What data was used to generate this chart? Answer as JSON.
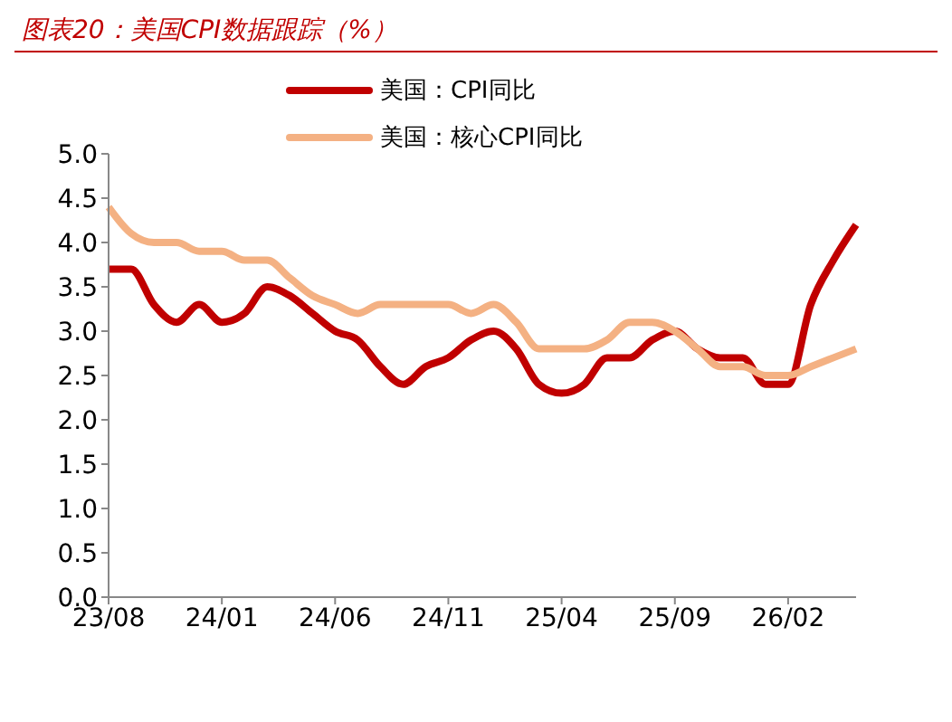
{
  "chart_data": {
    "type": "line",
    "title": "图表20：美国CPI数据跟踪（%）",
    "categories": [
      "23/08",
      null,
      null,
      null,
      null,
      "24/01",
      null,
      null,
      null,
      null,
      "24/06",
      null,
      null,
      null,
      null,
      "24/11",
      null,
      null,
      null,
      null,
      "25/04",
      null,
      null,
      null,
      null,
      "25/09",
      null,
      null,
      null,
      null,
      "26/02",
      null,
      null,
      null
    ],
    "series": [
      {
        "name": "美国：CPI同比",
        "color": "#c00000",
        "values": [
          3.7,
          3.7,
          3.3,
          3.1,
          3.3,
          3.1,
          3.2,
          3.5,
          3.4,
          3.2,
          3.0,
          2.9,
          2.6,
          2.4,
          2.6,
          2.7,
          2.9,
          3.0,
          2.8,
          2.4,
          2.3,
          2.4,
          2.7,
          2.7,
          2.9,
          3.0,
          2.8,
          2.7,
          2.7,
          2.4,
          2.4,
          3.3,
          3.8,
          4.2
        ]
      },
      {
        "name": "美国：核心CPI同比",
        "color": "#f4b183",
        "values": [
          4.4,
          4.1,
          4.0,
          4.0,
          3.9,
          3.9,
          3.8,
          3.8,
          3.6,
          3.4,
          3.3,
          3.2,
          3.3,
          3.3,
          3.3,
          3.3,
          3.2,
          3.3,
          3.1,
          2.8,
          2.8,
          2.8,
          2.9,
          3.1,
          3.1,
          3.0,
          2.8,
          2.6,
          2.6,
          2.5,
          2.5,
          2.6,
          2.7,
          2.8
        ]
      }
    ],
    "ylim": [
      0,
      5
    ],
    "yticks": [
      {
        "value": 0,
        "label": "0.0"
      },
      {
        "value": 0.5,
        "label": "0.5"
      },
      {
        "value": 1,
        "label": "1.0"
      },
      {
        "value": 1.5,
        "label": "1.5"
      },
      {
        "value": 2,
        "label": "2.0"
      },
      {
        "value": 2.5,
        "label": "2.5"
      },
      {
        "value": 3,
        "label": "3.0"
      },
      {
        "value": 3.5,
        "label": "3.5"
      },
      {
        "value": 4,
        "label": "4.0"
      },
      {
        "value": 4.5,
        "label": "4.5"
      },
      {
        "value": 5,
        "label": "5.0"
      }
    ],
    "legend": "top",
    "marker": "none",
    "line_style": "solid"
  }
}
